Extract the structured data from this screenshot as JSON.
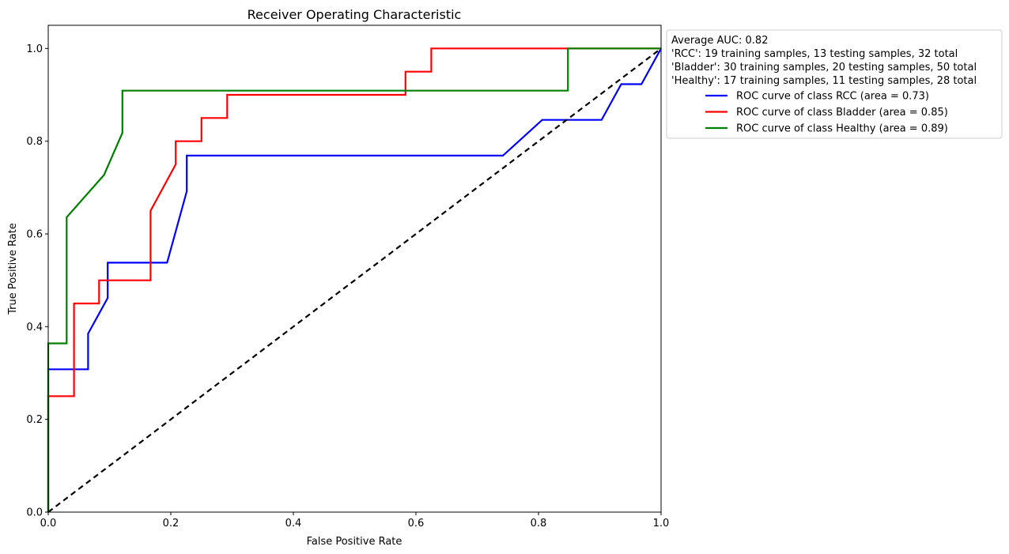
{
  "chart_data": {
    "type": "line",
    "title": "Receiver Operating Characteristic",
    "xlabel": "False Positive Rate",
    "ylabel": "True Positive Rate",
    "xlim": [
      0.0,
      1.0
    ],
    "ylim": [
      0.0,
      1.05
    ],
    "xticks": [
      "0.0",
      "0.2",
      "0.4",
      "0.6",
      "0.8",
      "1.0"
    ],
    "yticks": [
      "0.0",
      "0.2",
      "0.4",
      "0.6",
      "0.8",
      "1.0"
    ],
    "grid": false,
    "legend_position": "outside upper right",
    "legend_header": [
      "Average AUC: 0.82",
      "'RCC': 19 training samples, 13 testing samples, 32 total",
      "'Bladder': 30 training samples, 20 testing samples, 50 total",
      "'Healthy': 17 training samples, 11 testing samples, 28 total"
    ],
    "series": [
      {
        "name": "ROC curve of class RCC (area = 0.73)",
        "color": "#0000ff",
        "x": [
          0.0,
          0.0,
          0.065,
          0.065,
          0.097,
          0.097,
          0.194,
          0.226,
          0.226,
          0.742,
          0.806,
          0.903,
          0.935,
          0.968,
          1.0
        ],
        "y": [
          0.0,
          0.308,
          0.308,
          0.385,
          0.462,
          0.538,
          0.538,
          0.692,
          0.769,
          0.769,
          0.846,
          0.846,
          0.923,
          0.923,
          1.0
        ]
      },
      {
        "name": "ROC curve of class Bladder (area = 0.85)",
        "color": "#ff0000",
        "x": [
          0.0,
          0.0,
          0.042,
          0.042,
          0.083,
          0.083,
          0.167,
          0.167,
          0.208,
          0.208,
          0.25,
          0.25,
          0.292,
          0.292,
          0.583,
          0.583,
          0.625,
          0.625,
          1.0
        ],
        "y": [
          0.0,
          0.25,
          0.25,
          0.45,
          0.45,
          0.5,
          0.5,
          0.65,
          0.75,
          0.8,
          0.8,
          0.85,
          0.85,
          0.9,
          0.9,
          0.95,
          0.95,
          1.0,
          1.0
        ]
      },
      {
        "name": "ROC curve of class Healthy (area = 0.89)",
        "color": "#008000",
        "x": [
          0.0,
          0.0,
          0.03,
          0.03,
          0.091,
          0.121,
          0.121,
          0.848,
          0.848,
          1.0
        ],
        "y": [
          0.0,
          0.364,
          0.364,
          0.636,
          0.727,
          0.818,
          0.909,
          0.909,
          1.0,
          1.0
        ]
      }
    ],
    "reference_line": {
      "x": [
        0.0,
        1.0
      ],
      "y": [
        0.0,
        1.0
      ],
      "color": "#000000",
      "style": "dashed"
    }
  }
}
